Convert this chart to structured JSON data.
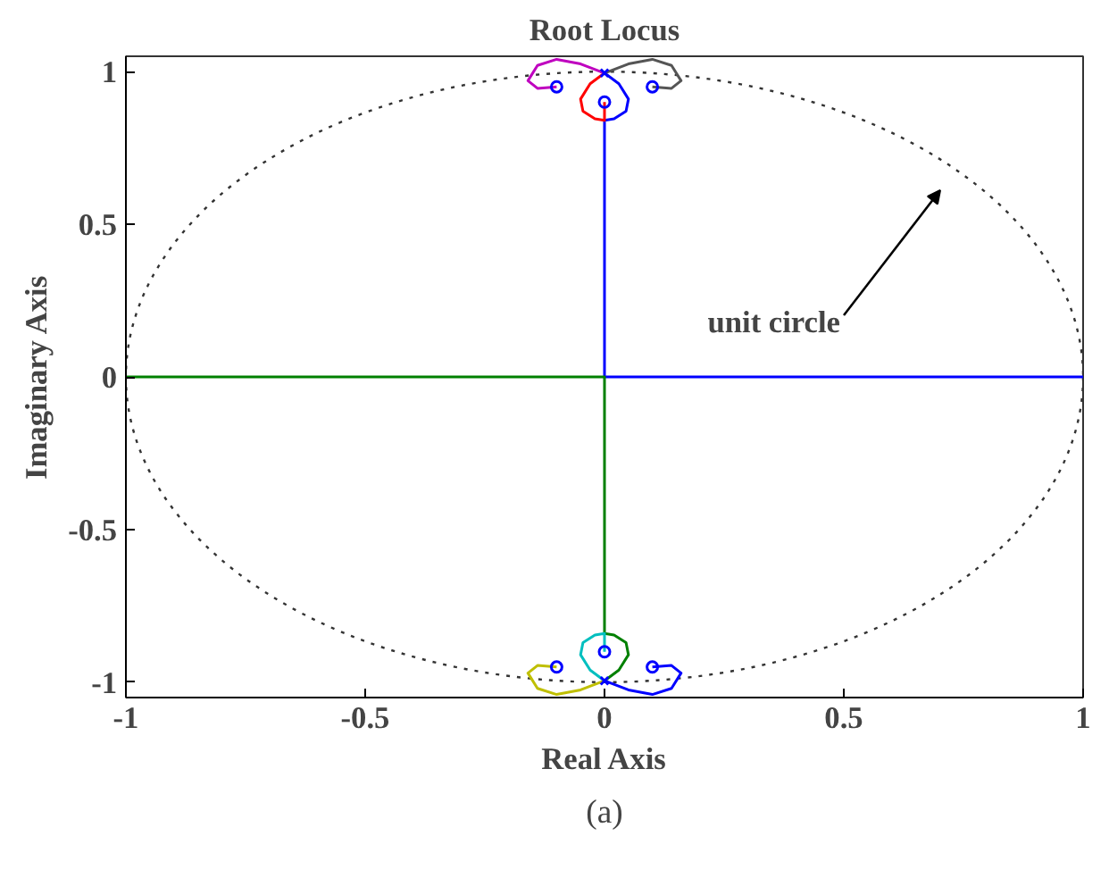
{
  "chart_data": {
    "type": "line",
    "title": "Root Locus",
    "xlabel": "Real Axis",
    "ylabel": "Imaginary Axis",
    "xlim": [
      -1,
      1
    ],
    "ylim": [
      -1.05,
      1.05
    ],
    "xticks": [
      -1,
      -0.5,
      0,
      0.5,
      1
    ],
    "yticks": [
      -1,
      -0.5,
      0,
      0.5,
      1
    ],
    "grid": false,
    "marker": "none",
    "line_style": "solid",
    "annotations": [
      "unit circle",
      "(a)"
    ],
    "series": [
      {
        "color": "#0000ff",
        "x": [
          0,
          0.03,
          0.05,
          0.045,
          0.02,
          0,
          0,
          1
        ],
        "values": [
          0.995,
          0.96,
          0.91,
          0.87,
          0.845,
          0.84,
          0,
          0
        ]
      },
      {
        "color": "#ff0000",
        "x": [
          0,
          -0.03,
          -0.05,
          -0.045,
          -0.02,
          0,
          0
        ],
        "values": [
          0.995,
          0.96,
          0.91,
          0.87,
          0.845,
          0.84,
          0.9
        ]
      },
      {
        "color": "#bf00bf",
        "x": [
          0,
          -0.05,
          -0.1,
          -0.14,
          -0.16,
          -0.14,
          -0.1
        ],
        "values": [
          0.995,
          1.025,
          1.04,
          1.02,
          0.97,
          0.945,
          0.95
        ]
      },
      {
        "color": "#555555",
        "x": [
          0,
          0.05,
          0.1,
          0.14,
          0.16,
          0.14,
          0.1
        ],
        "values": [
          0.995,
          1.025,
          1.04,
          1.02,
          0.97,
          0.945,
          0.95
        ]
      },
      {
        "color": "#008000",
        "x": [
          0,
          0.03,
          0.05,
          0.045,
          0.02,
          0,
          0,
          -1
        ],
        "values": [
          -0.995,
          -0.96,
          -0.91,
          -0.87,
          -0.845,
          -0.84,
          0,
          0
        ]
      },
      {
        "color": "#00bfbf",
        "x": [
          0,
          -0.03,
          -0.05,
          -0.045,
          -0.02,
          0,
          0
        ],
        "values": [
          -0.995,
          -0.96,
          -0.91,
          -0.87,
          -0.845,
          -0.84,
          -0.9
        ]
      },
      {
        "color": "#bfbf00",
        "x": [
          0,
          -0.05,
          -0.1,
          -0.14,
          -0.16,
          -0.14,
          -0.1
        ],
        "values": [
          -0.995,
          -1.025,
          -1.04,
          -1.02,
          -0.97,
          -0.945,
          -0.95
        ]
      },
      {
        "color": "#0000ff",
        "x": [
          0,
          0.05,
          0.1,
          0.14,
          0.16,
          0.14,
          0.1
        ],
        "values": [
          -0.995,
          -1.025,
          -1.04,
          -1.02,
          -0.97,
          -0.945,
          -0.95
        ]
      },
      {
        "type": "scatter",
        "marker": "circle",
        "color": "#0000ff",
        "x": [
          0,
          -0.1,
          0.1,
          0,
          -0.1,
          0.1
        ],
        "values": [
          0.9,
          0.95,
          0.95,
          -0.9,
          -0.95,
          -0.95
        ]
      },
      {
        "type": "scatter",
        "marker": "cross",
        "color": "#0000ff",
        "x": [
          0,
          0
        ],
        "values": [
          0.995,
          -0.995
        ]
      }
    ]
  }
}
